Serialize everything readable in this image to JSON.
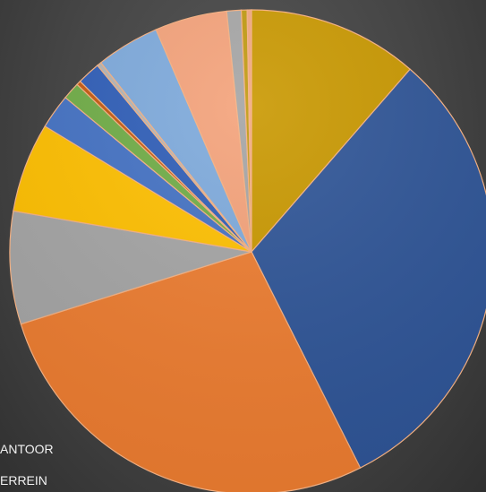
{
  "chart_data": {
    "type": "pie",
    "slices": [
      {
        "value": 11.8,
        "color": "#C99800"
      },
      {
        "value": 32.3,
        "color": "#2F5597"
      },
      {
        "value": 28.6,
        "color": "#ED7D31"
      },
      {
        "value": 7.8,
        "color": "#A5A5A5"
      },
      {
        "value": 6.2,
        "color": "#FFC000"
      },
      {
        "value": 2.4,
        "color": "#4472C4"
      },
      {
        "value": 1.2,
        "color": "#70AD47"
      },
      {
        "value": 0.3,
        "color": "#C55A11"
      },
      {
        "value": 1.6,
        "color": "#2F5EB8"
      },
      {
        "value": 0.3,
        "color": "#B5B5B5"
      },
      {
        "value": 4.4,
        "color": "#7EAADC"
      },
      {
        "value": 5.0,
        "color": "#F4A27A"
      },
      {
        "value": 1.0,
        "color": "#A5A5A5"
      },
      {
        "value": 0.4,
        "color": "#C09A10"
      },
      {
        "value": 0.3,
        "color": "#F1A67E"
      }
    ],
    "start_angle_deg": 0,
    "direction": "clockwise",
    "edge_color": "#F4B183",
    "legend": [
      "ANTOOR",
      "ERREIN"
    ],
    "legend_placement": "bottom-left"
  }
}
